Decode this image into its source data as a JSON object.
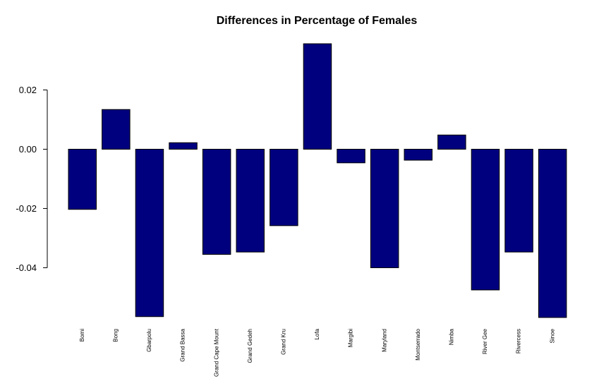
{
  "chart_data": {
    "type": "bar",
    "title": "Differences in Percentage of Females",
    "xlabel": "",
    "ylabel": "",
    "categories": [
      "Bomi",
      "Bong",
      "Gbarpolu",
      "Grand Bassa",
      "Grand Cape Mount",
      "Grand Gedeh",
      "Grand Kru",
      "Lofa",
      "Margibi",
      "Maryland",
      "Montserrado",
      "Nimba",
      "River Gee",
      "Rivercess",
      "Sinoe"
    ],
    "values": [
      -0.0203,
      0.0134,
      -0.0565,
      0.0022,
      -0.0355,
      -0.0347,
      -0.0258,
      0.0356,
      -0.0046,
      -0.04,
      -0.0037,
      0.0048,
      -0.0475,
      -0.0347,
      -0.0568
    ],
    "ylim": [
      -0.0568,
      0.0356
    ],
    "yticks": [
      -0.04,
      -0.02,
      0.0,
      0.02
    ],
    "ytick_labels": [
      "-0.04",
      "-0.02",
      "0.00",
      "0.02"
    ],
    "bar_color": "#00007f",
    "grid": false,
    "legend": "none"
  }
}
